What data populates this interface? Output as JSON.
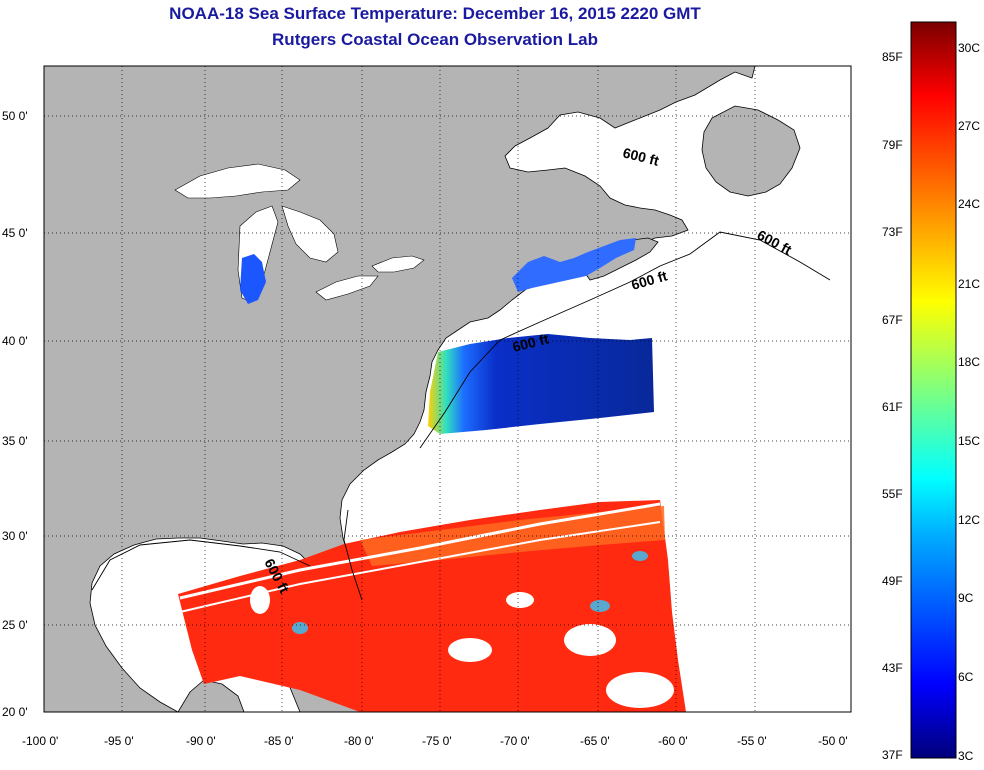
{
  "title": "NOAA-18 Sea Surface Temperature:  December 16, 2015 2220 GMT",
  "subtitle": "Rutgers Coastal Ocean Observation Lab",
  "colors": {
    "land": "#b4b4b4",
    "ocean_nodata": "#ffffff",
    "title": "#1a1aa0"
  },
  "map": {
    "lon_ticks": [
      "-100 0'",
      "-95 0'",
      "-90 0'",
      "-85 0'",
      "-80 0'",
      "-75 0'",
      "-70 0'",
      "-65 0'",
      "-60 0'",
      "-55 0'",
      "-50 0'"
    ],
    "lat_ticks": [
      "50 0'",
      "45 0'",
      "40 0'",
      "35 0'",
      "30 0'",
      "25 0'",
      "20 0'"
    ],
    "contour_labels": [
      "600 ft",
      "600 ft",
      "600 ft",
      "600 ft",
      "600 ft"
    ]
  },
  "colorbar": {
    "fahrenheit": [
      "85F",
      "79F",
      "73F",
      "67F",
      "61F",
      "55F",
      "49F",
      "43F",
      "37F"
    ],
    "celsius": [
      "30C",
      "27C",
      "24C",
      "21C",
      "18C",
      "15C",
      "12C",
      "9C",
      "6C",
      "3C"
    ]
  }
}
